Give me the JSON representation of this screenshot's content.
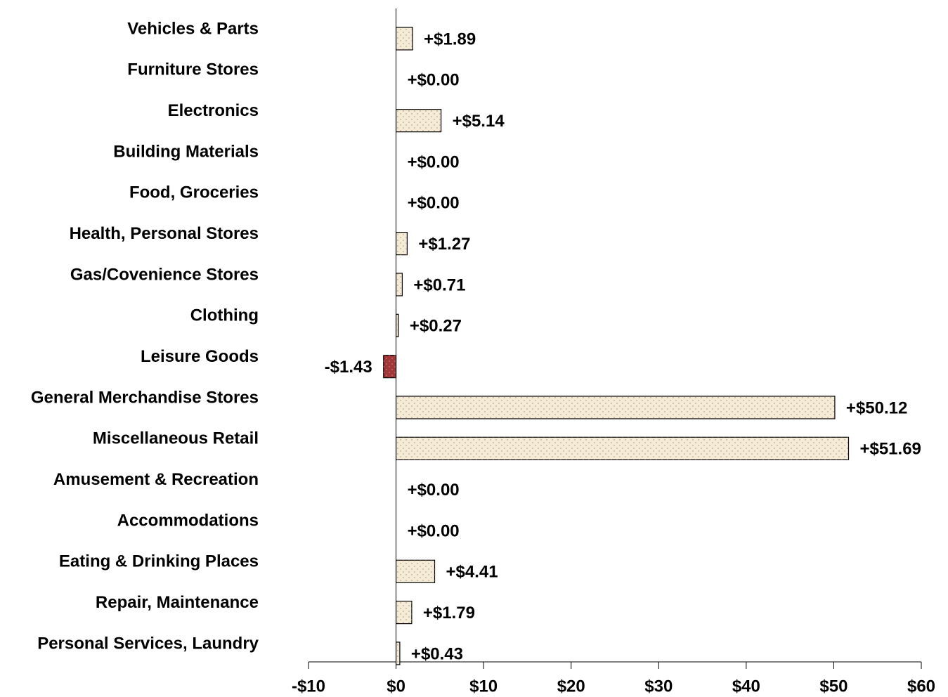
{
  "chart_data": {
    "type": "barh",
    "categories": [
      "Vehicles & Parts",
      "Furniture Stores",
      "Electronics",
      "Building Materials",
      "Food, Groceries",
      "Health, Personal Stores",
      "Gas/Covenience Stores",
      "Clothing",
      "Leisure Goods",
      "General Merchandise Stores",
      "Miscellaneous Retail",
      "Amusement & Recreation",
      "Accommodations",
      "Eating & Drinking Places",
      "Repair, Maintenance",
      "Personal Services, Laundry"
    ],
    "values": [
      1.89,
      0,
      5.14,
      0,
      0,
      1.27,
      0.71,
      0.27,
      -1.43,
      50.12,
      51.69,
      0,
      0,
      4.41,
      1.79,
      0.43
    ],
    "value_labels": [
      "+$1.89",
      "+$0.00",
      "+$5.14",
      "+$0.00",
      "+$0.00",
      "+$1.27",
      "+$0.71",
      "+$0.27",
      "-$1.43",
      "+$50.12",
      "+$51.69",
      "+$0.00",
      "+$0.00",
      "+$4.41",
      "+$1.79",
      "+$0.43"
    ],
    "color": "#f3ecd6",
    "negative_color": "#a33636",
    "xlim": [
      -10,
      60
    ],
    "xticks": [
      {
        "value": -10,
        "label": "-$10"
      },
      {
        "value": 0,
        "label": "$0"
      },
      {
        "value": 10,
        "label": "$10"
      },
      {
        "value": 20,
        "label": "$20"
      },
      {
        "value": 30,
        "label": "$30"
      },
      {
        "value": 40,
        "label": "$40"
      },
      {
        "value": 50,
        "label": "$50"
      },
      {
        "value": 60,
        "label": "$60"
      }
    ]
  }
}
